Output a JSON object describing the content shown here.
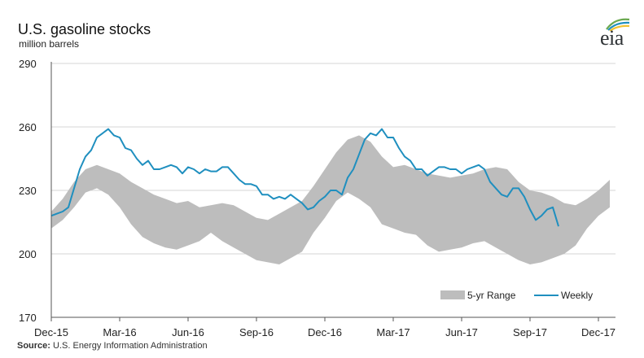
{
  "header": {
    "title": "U.S. gasoline stocks",
    "subtitle": "million barrels",
    "logo_text": "eia"
  },
  "footer": {
    "source_label": "Source:",
    "source_text": "U.S. Energy Information Administration"
  },
  "colors": {
    "range_fill": "#bdbdbd",
    "weekly_line": "#1f8fbf",
    "grid": "#d6d6d6",
    "axis": "#555555"
  },
  "chart_data": {
    "type": "line",
    "title": "U.S. gasoline stocks",
    "ylabel": "million barrels",
    "ylim": [
      170,
      290
    ],
    "y_ticks": [
      170,
      200,
      230,
      260,
      290
    ],
    "x_ticks": [
      "Dec-15",
      "Mar-16",
      "Jun-16",
      "Sep-16",
      "Dec-16",
      "Mar-17",
      "Jun-17",
      "Sep-17",
      "Dec-17"
    ],
    "grid": "horizontal",
    "legend_position": "bottom-right",
    "legend": [
      "5-yr Range",
      "Weekly"
    ],
    "range_series": {
      "name": "5-yr Range",
      "x_month_index": [
        0,
        0.5,
        1,
        1.5,
        2,
        2.5,
        3,
        3.5,
        4,
        4.5,
        5,
        5.5,
        6,
        6.5,
        7,
        7.5,
        8,
        8.5,
        9,
        9.5,
        10,
        10.5,
        11,
        11.5,
        12,
        12.5,
        13,
        13.5,
        14,
        14.5,
        15,
        15.5,
        16,
        16.5,
        17,
        17.5,
        18,
        18.5,
        19,
        19.5,
        20,
        20.5,
        21,
        21.5,
        22,
        22.5,
        23,
        23.5,
        24,
        24.5
      ],
      "upper": [
        220,
        226,
        234,
        240,
        242,
        240,
        238,
        234,
        231,
        228,
        226,
        224,
        225,
        222,
        223,
        224,
        223,
        220,
        217,
        216,
        219,
        222,
        225,
        232,
        240,
        248,
        254,
        256,
        253,
        246,
        241,
        242,
        240,
        238,
        237,
        236,
        237,
        238,
        240,
        241,
        240,
        234,
        230,
        229,
        227,
        224,
        223,
        226,
        230,
        235
      ],
      "lower": [
        212,
        216,
        222,
        229,
        231,
        228,
        222,
        214,
        208,
        205,
        203,
        202,
        204,
        206,
        210,
        206,
        203,
        200,
        197,
        196,
        195,
        198,
        201,
        210,
        217,
        225,
        229,
        226,
        222,
        214,
        212,
        210,
        209,
        204,
        201,
        202,
        203,
        205,
        206,
        203,
        200,
        197,
        195,
        196,
        198,
        200,
        204,
        212,
        218,
        222
      ]
    },
    "weekly_series": {
      "name": "Weekly",
      "x_month_index": [
        0,
        0.25,
        0.5,
        0.75,
        1,
        1.25,
        1.5,
        1.75,
        2,
        2.25,
        2.5,
        2.75,
        3,
        3.25,
        3.5,
        3.75,
        4,
        4.25,
        4.5,
        4.75,
        5,
        5.25,
        5.5,
        5.75,
        6,
        6.25,
        6.5,
        6.75,
        7,
        7.25,
        7.5,
        7.75,
        8,
        8.25,
        8.5,
        8.75,
        9,
        9.25,
        9.5,
        9.75,
        10,
        10.25,
        10.5,
        10.75,
        11,
        11.25,
        11.5,
        11.75,
        12,
        12.25,
        12.5,
        12.75,
        13,
        13.25,
        13.5,
        13.75,
        14,
        14.25,
        14.5,
        14.75,
        15,
        15.25,
        15.5,
        15.75,
        16,
        16.25,
        16.5,
        16.75,
        17,
        17.25,
        17.5,
        17.75,
        18,
        18.25,
        18.5,
        18.75,
        19,
        19.25,
        19.5,
        19.75,
        20,
        20.25,
        20.5,
        20.75,
        21,
        21.25,
        21.5,
        21.75,
        22,
        22.25
      ],
      "values": [
        218,
        219,
        220,
        222,
        231,
        240,
        246,
        249,
        255,
        257,
        259,
        256,
        255,
        250,
        249,
        245,
        242,
        244,
        240,
        240,
        241,
        242,
        241,
        238,
        241,
        240,
        238,
        240,
        239,
        239,
        241,
        241,
        238,
        235,
        233,
        233,
        232,
        228,
        228,
        226,
        227,
        226,
        228,
        226,
        224,
        221,
        222,
        225,
        227,
        230,
        230,
        228,
        236,
        240,
        247,
        254,
        257,
        256,
        259,
        255,
        255,
        250,
        246,
        244,
        240,
        240,
        237,
        239,
        241,
        241,
        240,
        240,
        238,
        240,
        241,
        242,
        240,
        234,
        231,
        228,
        227,
        231,
        231,
        227,
        221,
        216,
        218,
        221,
        222,
        213
      ]
    }
  }
}
